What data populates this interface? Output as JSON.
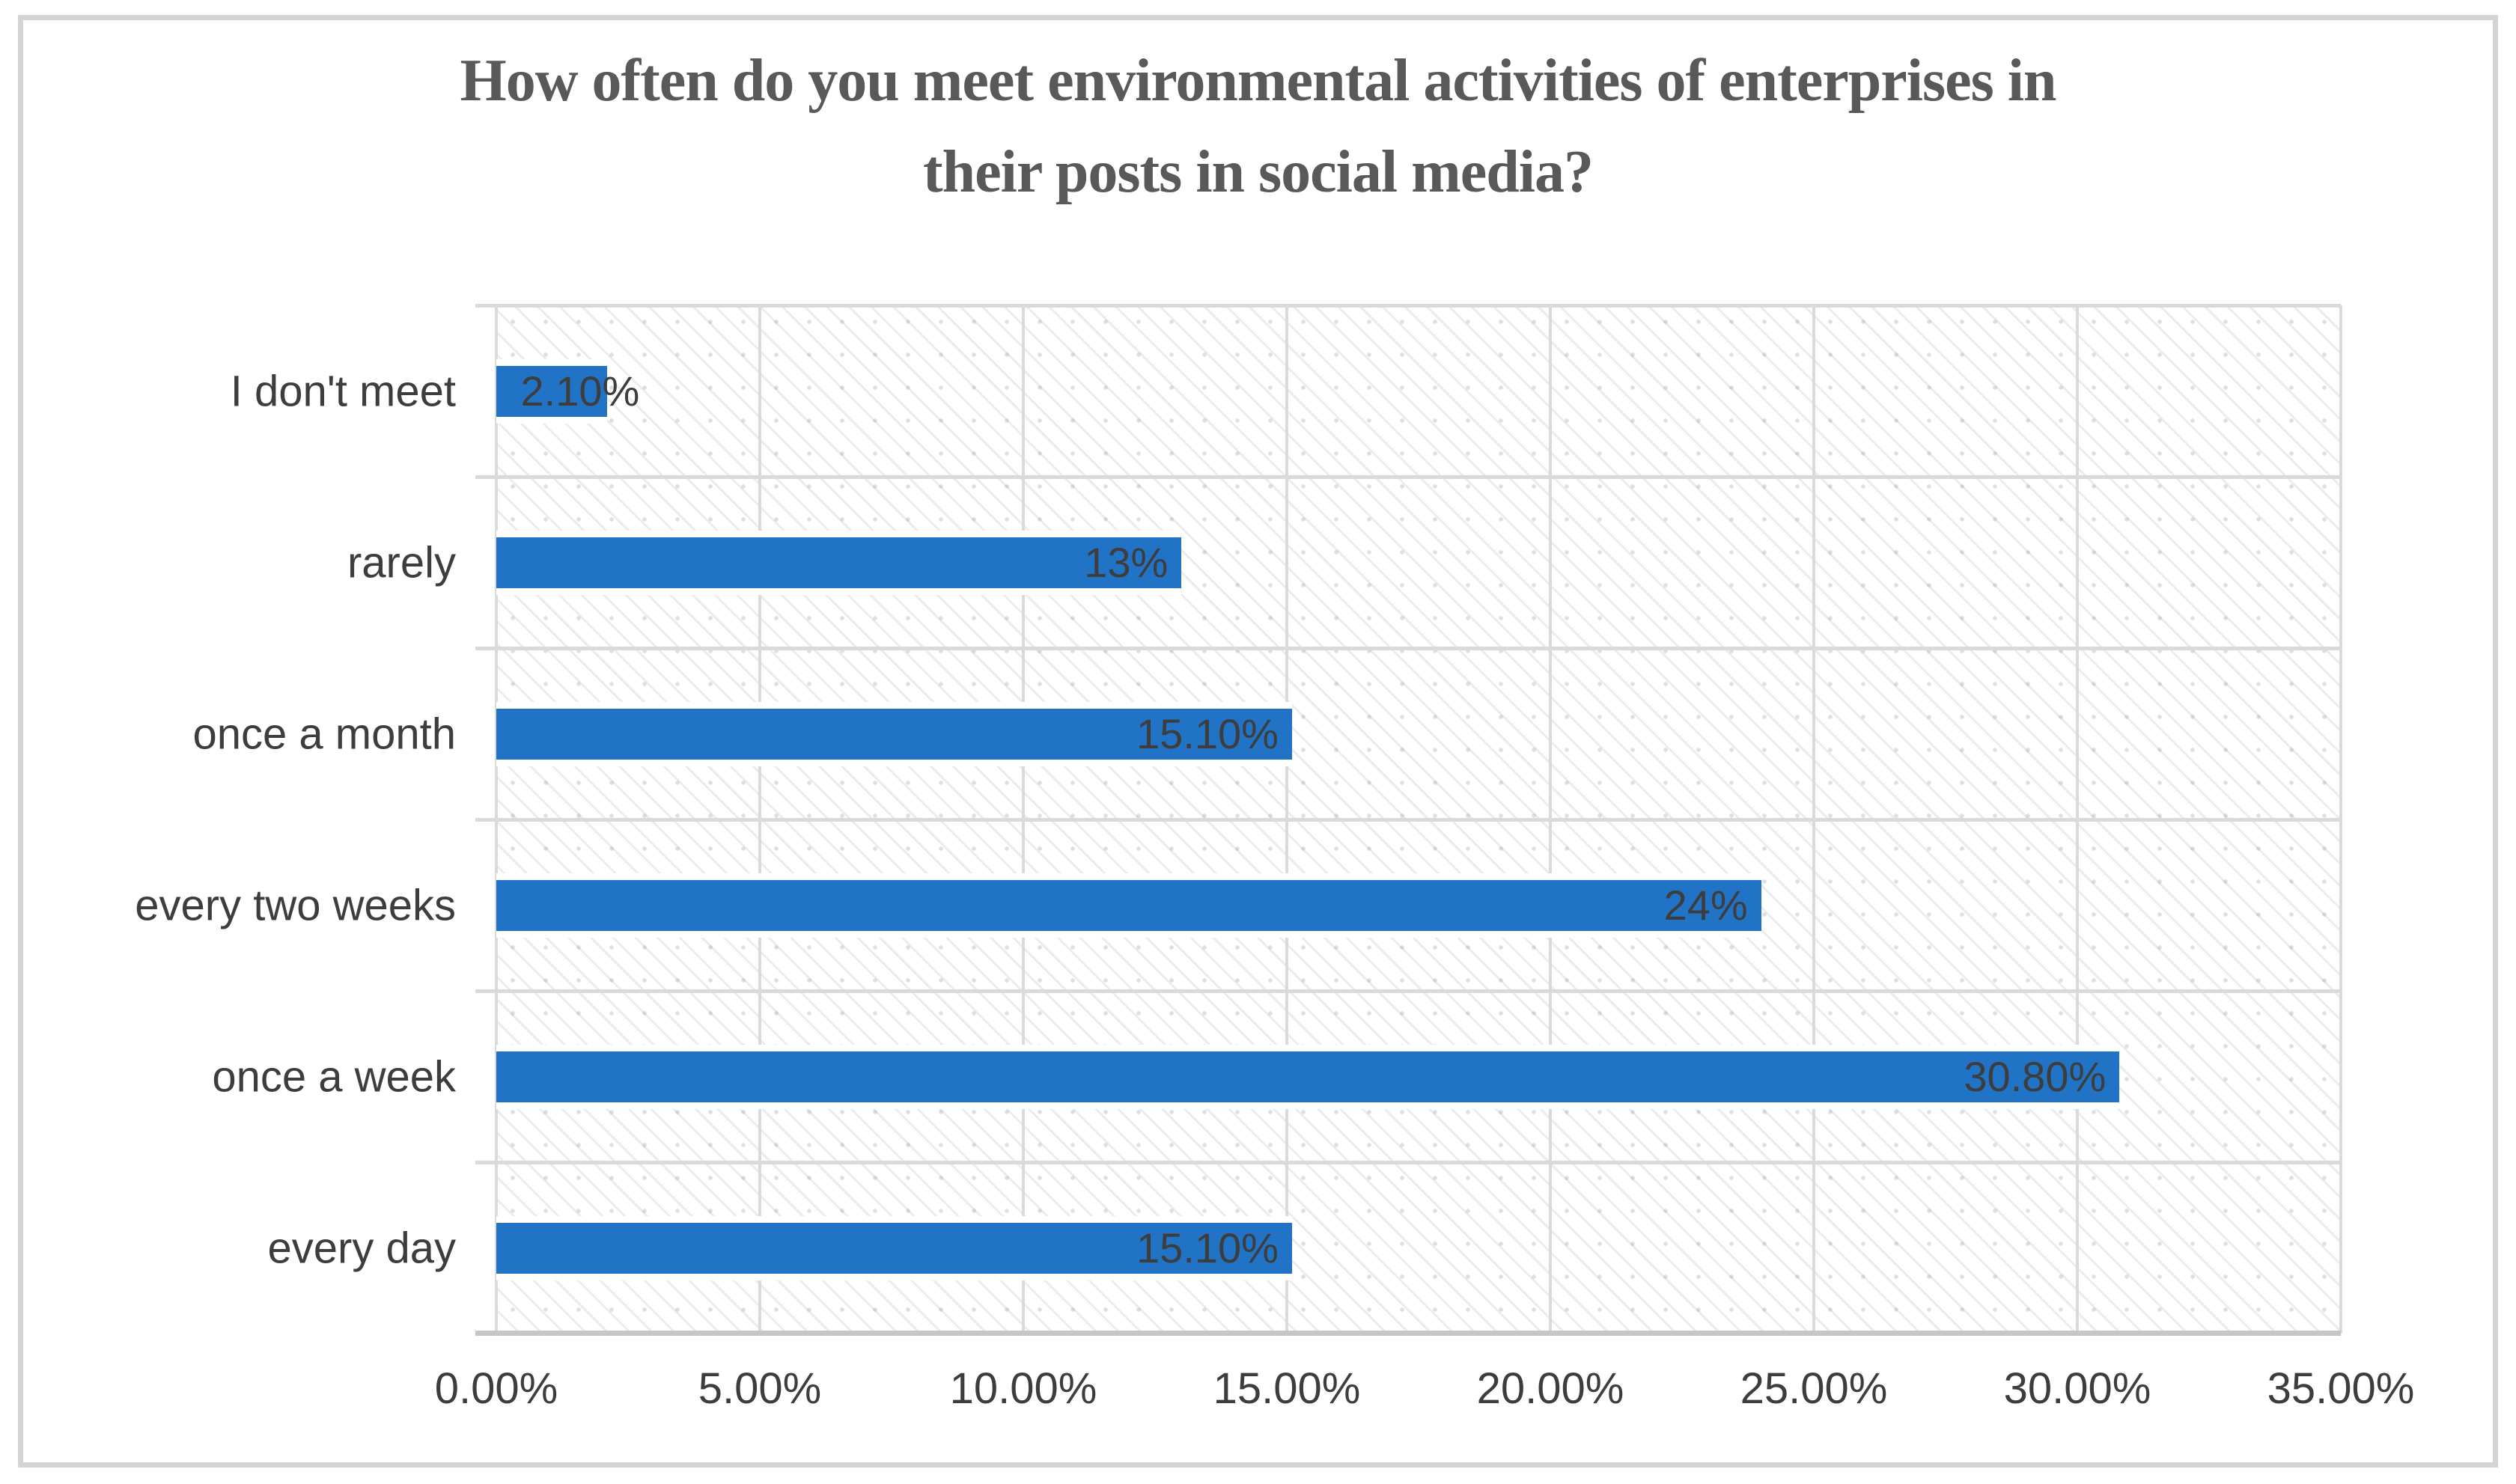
{
  "chart_data": {
    "type": "bar",
    "orientation": "horizontal",
    "title": "How often do you meet environmental activities of enterprises in their posts in social media?",
    "title_lines": [
      "How often do you meet environmental activities of enterprises in",
      "their posts in social media?"
    ],
    "categories": [
      "I don't meet",
      "rarely",
      "once a month",
      "every two weeks",
      "once a week",
      "every day"
    ],
    "values": [
      2.1,
      13,
      15.1,
      24,
      30.8,
      15.1
    ],
    "value_labels": [
      "2.10%",
      "13%",
      "15.10%",
      "24%",
      "30.80%",
      "15.10%"
    ],
    "x_ticks": [
      "0.00%",
      "5.00%",
      "10.00%",
      "15.00%",
      "20.00%",
      "25.00%",
      "30.00%",
      "35.00%"
    ],
    "xlim": [
      0,
      35
    ],
    "xlabel": "",
    "ylabel": "",
    "legend": "none",
    "grid": "on",
    "plot_background_pattern": "light-downward-diagonal-hatch",
    "bar_color": "#2173C6",
    "value_label_color": "#3D3D3D",
    "axis_label_color": "#3D3D3D",
    "title_color": "#595959",
    "gridline_color": "#DADADA",
    "axis_line_color": "#C6C6C6",
    "frame_border_color": "#D4D4D4"
  }
}
